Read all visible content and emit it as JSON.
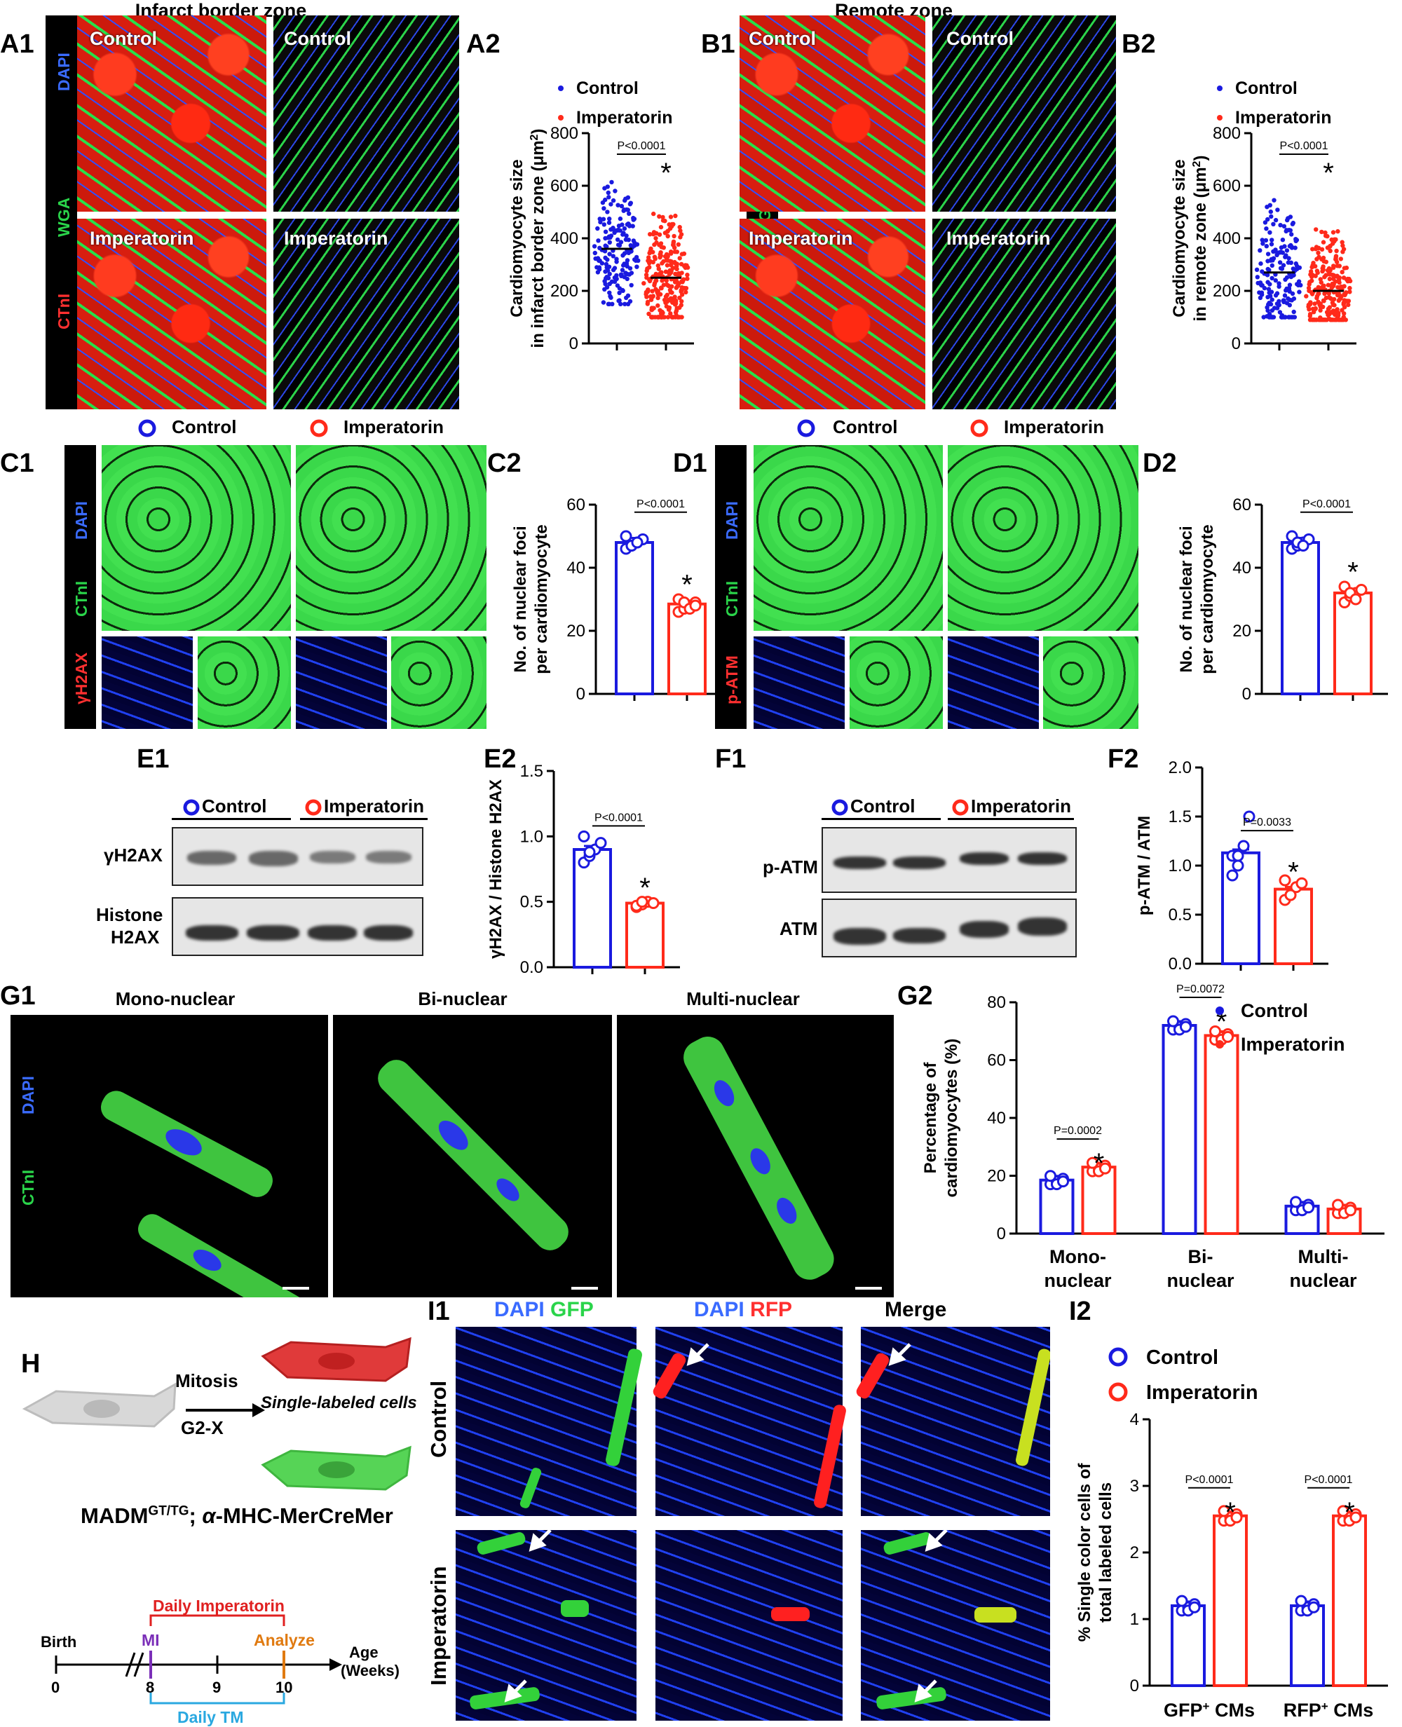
{
  "section_titles": {
    "infarct": "Infarct border zone",
    "remote": "Remote zone"
  },
  "panel_labels": {
    "A1": "A1",
    "A2": "A2",
    "B1": "B1",
    "B2": "B2",
    "C1": "C1",
    "C2": "C2",
    "D1": "D1",
    "D2": "D2",
    "E1": "E1",
    "E2": "E2",
    "F1": "F1",
    "F2": "F2",
    "G1": "G1",
    "G2": "G2",
    "H": "H",
    "I1": "I1",
    "I2": "I2"
  },
  "stains": {
    "dapi": "DAPI",
    "wga": "WGA",
    "ctni": "CTnI",
    "gh2ax": "γH2AX",
    "patm": "p-ATM"
  },
  "groups": {
    "control": "Control",
    "imperatorin": "Imperatorin"
  },
  "colors": {
    "control": "#1a1adf",
    "imperatorin": "#ff2a1a"
  },
  "charts": {
    "A2": {
      "type": "scatter",
      "ylabel_1": "Cardiomyocyte size",
      "ylabel_2": "in infarct border zone (μm",
      "ylabel_sup": "2",
      "ylabel_end": ")",
      "yticks": [
        "0",
        "200",
        "400",
        "600",
        "800"
      ],
      "ylim": [
        0,
        800
      ],
      "pvalue": "P<0.0001",
      "star": "*",
      "series": [
        {
          "name": "Control",
          "median": 360,
          "spread": [
            150,
            630
          ]
        },
        {
          "name": "Imperatorin",
          "median": 250,
          "spread": [
            100,
            620
          ]
        }
      ]
    },
    "B2": {
      "type": "scatter",
      "ylabel_1": "Cardiomyocyte size",
      "ylabel_2": "in remote zone (μm",
      "ylabel_sup": "2",
      "ylabel_end": ")",
      "yticks": [
        "0",
        "200",
        "400",
        "600",
        "800"
      ],
      "ylim": [
        0,
        800
      ],
      "pvalue": "P<0.0001",
      "star": "*",
      "series": [
        {
          "name": "Control",
          "median": 270,
          "spread": [
            100,
            620
          ]
        },
        {
          "name": "Imperatorin",
          "median": 200,
          "spread": [
            90,
            590
          ]
        }
      ]
    },
    "C2": {
      "type": "bar",
      "ylabel_1": "No. of nuclear foci",
      "ylabel_2": "per cardiomyocyte",
      "yticks": [
        "0",
        "20",
        "40",
        "60"
      ],
      "ylim": [
        0,
        60
      ],
      "pvalue": "P<0.0001",
      "star": "*",
      "values": [
        48,
        28.5
      ],
      "points": [
        [
          46,
          47,
          48,
          49,
          50,
          47,
          48
        ],
        [
          26,
          27,
          28,
          29,
          30,
          29,
          27,
          28
        ]
      ]
    },
    "D2": {
      "type": "bar",
      "ylabel_1": "No. of nuclear foci",
      "ylabel_2": "per cardiomyocyte",
      "yticks": [
        "0",
        "20",
        "40",
        "60"
      ],
      "ylim": [
        0,
        60
      ],
      "pvalue": "P<0.0001",
      "star": "*",
      "values": [
        48,
        32
      ],
      "points": [
        [
          46,
          47,
          48,
          49,
          50,
          48,
          47
        ],
        [
          29,
          31,
          32,
          33,
          34,
          32,
          30
        ]
      ]
    },
    "E2": {
      "type": "bar",
      "ylabel": "γH2AX / Histone H2AX",
      "yticks": [
        "0.0",
        "0.5",
        "1.0",
        "1.5"
      ],
      "ylim": [
        0,
        1.5
      ],
      "pvalue": "P<0.0001",
      "star": "*",
      "values": [
        0.9,
        0.49
      ],
      "points": [
        [
          0.8,
          0.85,
          0.9,
          0.95,
          1.0,
          0.88
        ],
        [
          0.46,
          0.48,
          0.5,
          0.49,
          0.47,
          0.5
        ]
      ]
    },
    "F2": {
      "type": "bar",
      "ylabel": "p-ATM / ATM",
      "yticks": [
        "0.0",
        "0.5",
        "1.0",
        "1.5",
        "2.0"
      ],
      "ylim": [
        0,
        2.0
      ],
      "pvalue": "P=0.0033",
      "star": "*",
      "values": [
        1.13,
        0.76
      ],
      "points": [
        [
          0.9,
          1.0,
          1.2,
          1.5,
          1.1,
          1.1
        ],
        [
          0.65,
          0.7,
          0.78,
          0.82,
          0.85,
          0.7
        ]
      ]
    },
    "G2": {
      "type": "grouped-bar",
      "ylabel_1": "Percentage of",
      "ylabel_2": "cardiomyocytes (%)",
      "yticks": [
        "0",
        "20",
        "40",
        "60",
        "80"
      ],
      "ylim": [
        0,
        80
      ],
      "categories": [
        [
          "Mono-",
          "nuclear"
        ],
        [
          "Bi-",
          "nuclear"
        ],
        [
          "Multi-",
          "nuclear"
        ]
      ],
      "series": [
        {
          "name": "Control",
          "values": [
            18.5,
            72,
            9.5
          ]
        },
        {
          "name": "Imperatorin",
          "values": [
            23,
            68.5,
            8.5
          ]
        }
      ],
      "pvalues": [
        "P=0.0002",
        "P=0.0072",
        ""
      ],
      "stars": [
        "*",
        "*",
        ""
      ]
    },
    "I2": {
      "type": "grouped-bar",
      "ylabel_1": "% Single color cells of",
      "ylabel_2": "total labeled cells",
      "yticks": [
        "0",
        "1",
        "2",
        "3",
        "4"
      ],
      "ylim": [
        0,
        4
      ],
      "categories": [
        [
          "GFP",
          "+",
          " CMs"
        ],
        [
          "RFP",
          "+",
          " CMs"
        ]
      ],
      "series": [
        {
          "name": "Control",
          "values": [
            1.2,
            1.2
          ]
        },
        {
          "name": "Imperatorin",
          "values": [
            2.55,
            2.55
          ]
        }
      ],
      "pvalues": [
        "P<0.0001",
        "P<0.0001"
      ],
      "stars": [
        "*",
        "*"
      ]
    }
  },
  "blots": {
    "E1": {
      "rows": [
        "γH2AX",
        "Histone",
        "H2AX"
      ],
      "legend": [
        "Control",
        "Imperatorin"
      ]
    },
    "F1": {
      "rows": [
        "p-ATM",
        "ATM"
      ],
      "legend": [
        "Control",
        "Imperatorin"
      ]
    }
  },
  "G1": {
    "titles": [
      "Mono-nuclear",
      "Bi-nuclear",
      "Multi-nuclear"
    ]
  },
  "H": {
    "mitosis": "Mitosis",
    "g2x": "G2-X",
    "single": "Single-labeled cells",
    "genotype_a": "MADM",
    "genotype_sup": "GT/TG",
    "genotype_b": "; ",
    "genotype_alpha": "α",
    "genotype_c": "-MHC-MerCreMer",
    "timeline": {
      "birth": "Birth",
      "mi": "MI",
      "analyze": "Analyze",
      "age": "Age",
      "weeks": "(Weeks)",
      "daily_imp": "Daily Imperatorin",
      "daily_tm": "Daily TM",
      "ticks": [
        "0",
        "8",
        "9",
        "10"
      ]
    }
  },
  "I1": {
    "col1_a": "DAPI",
    "col1_b": "GFP",
    "col2_a": "DAPI",
    "col2_b": "RFP",
    "col3": "Merge",
    "row1": "Control",
    "row2": "Imperatorin"
  }
}
